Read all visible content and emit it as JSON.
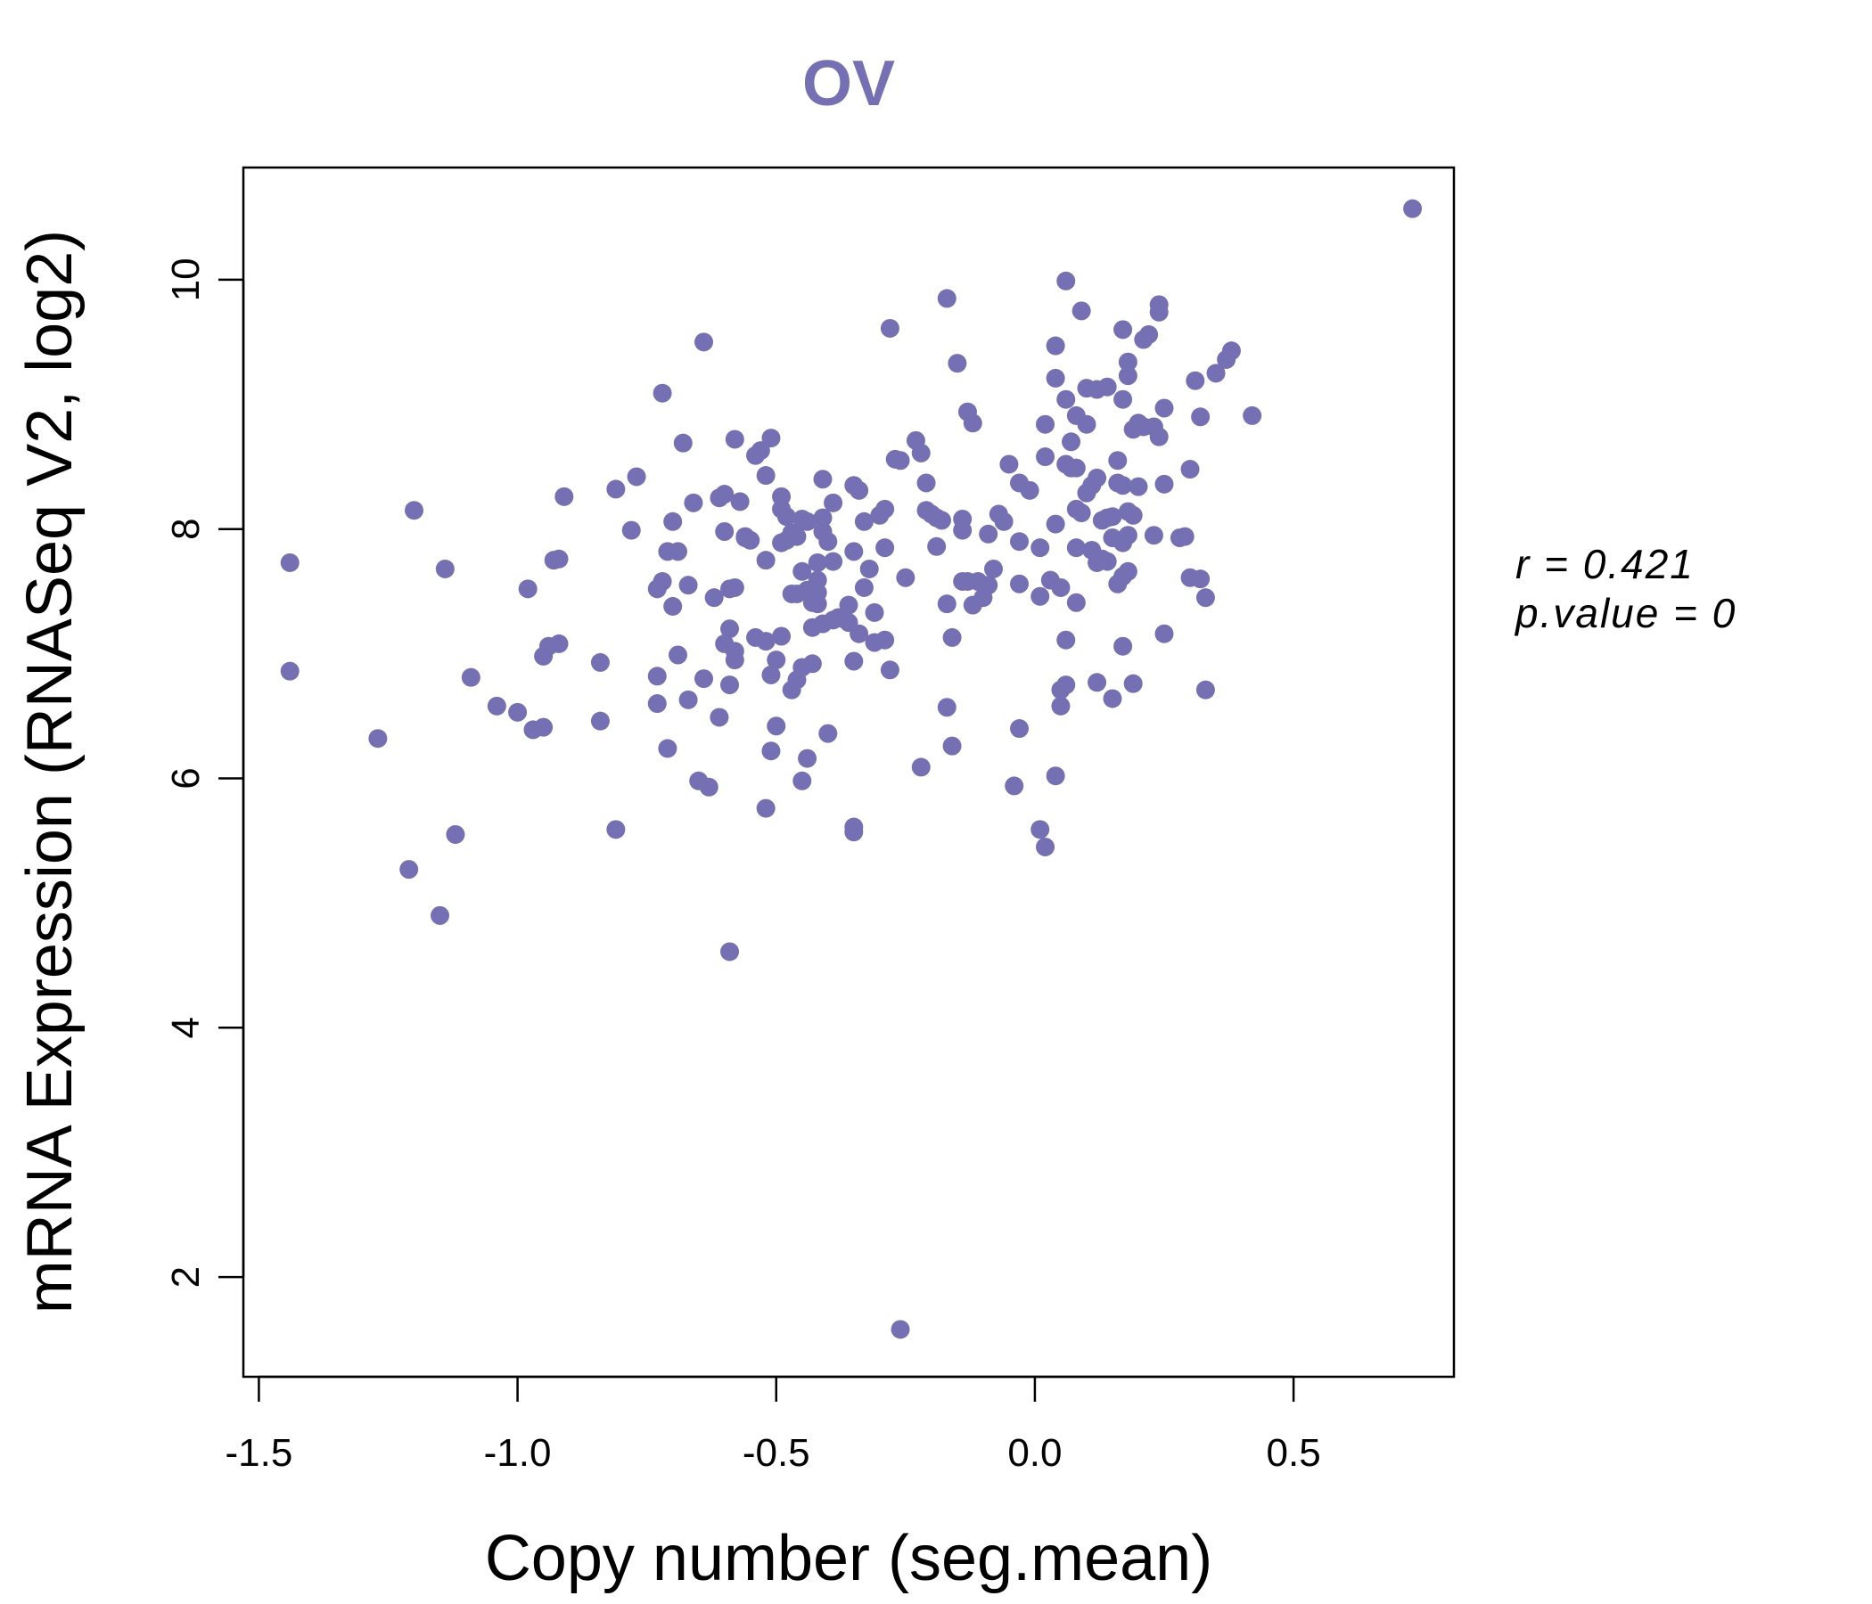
{
  "chart_data": {
    "type": "scatter",
    "title": "OV",
    "xlabel": "Copy number (seg.mean)",
    "ylabel": "mRNA Expression (RNASeq V2, log2)",
    "xlim": [
      -1.53,
      0.81
    ],
    "ylim": [
      1.2,
      10.9
    ],
    "x_ticks": [
      "-1.5",
      "-1.0",
      "-0.5",
      "0.0",
      "0.5"
    ],
    "y_ticks": [
      "2",
      "4",
      "6",
      "8",
      "10"
    ],
    "grid": false,
    "legend": "none",
    "point_color": "#7570b3",
    "annotations": {
      "r_label": "r = 0.421",
      "p_label": "p.value = 0"
    },
    "points": [
      [
        -1.44,
        7.73
      ],
      [
        -1.44,
        6.86
      ],
      [
        -1.27,
        6.32
      ],
      [
        -1.21,
        5.27
      ],
      [
        -1.2,
        8.15
      ],
      [
        -1.15,
        4.9
      ],
      [
        -1.14,
        7.68
      ],
      [
        -1.12,
        5.55
      ],
      [
        -1.09,
        6.81
      ],
      [
        -1.04,
        6.58
      ],
      [
        -1.0,
        6.53
      ],
      [
        -0.98,
        7.52
      ],
      [
        -0.97,
        6.39
      ],
      [
        -0.95,
        6.98
      ],
      [
        -0.95,
        6.41
      ],
      [
        -0.94,
        7.06
      ],
      [
        -0.93,
        7.75
      ],
      [
        -0.92,
        7.76
      ],
      [
        -0.92,
        7.08
      ],
      [
        -0.91,
        8.26
      ],
      [
        -0.84,
        6.93
      ],
      [
        -0.84,
        6.46
      ],
      [
        -0.81,
        8.32
      ],
      [
        -0.81,
        5.59
      ],
      [
        -0.78,
        7.99
      ],
      [
        -0.77,
        8.42
      ],
      [
        -0.73,
        7.52
      ],
      [
        -0.73,
        6.6
      ],
      [
        -0.73,
        6.82
      ],
      [
        -0.72,
        9.09
      ],
      [
        -0.72,
        7.58
      ],
      [
        -0.71,
        7.82
      ],
      [
        -0.71,
        6.24
      ],
      [
        -0.7,
        8.06
      ],
      [
        -0.7,
        7.38
      ],
      [
        -0.69,
        6.99
      ],
      [
        -0.69,
        7.82
      ],
      [
        -0.68,
        8.69
      ],
      [
        -0.67,
        7.55
      ],
      [
        -0.67,
        6.63
      ],
      [
        -0.66,
        8.21
      ],
      [
        -0.65,
        5.98
      ],
      [
        -0.64,
        9.5
      ],
      [
        -0.64,
        6.8
      ],
      [
        -0.63,
        5.93
      ],
      [
        -0.62,
        7.45
      ],
      [
        -0.61,
        8.25
      ],
      [
        -0.61,
        6.49
      ],
      [
        -0.6,
        8.28
      ],
      [
        -0.6,
        7.98
      ],
      [
        -0.6,
        7.08
      ],
      [
        -0.59,
        7.52
      ],
      [
        -0.59,
        7.2
      ],
      [
        -0.59,
        6.75
      ],
      [
        -0.59,
        4.61
      ],
      [
        -0.58,
        8.72
      ],
      [
        -0.58,
        7.53
      ],
      [
        -0.58,
        7.02
      ],
      [
        -0.58,
        6.95
      ],
      [
        -0.57,
        8.22
      ],
      [
        -0.56,
        7.94
      ],
      [
        -0.56,
        7.93
      ],
      [
        -0.55,
        7.91
      ],
      [
        -0.54,
        8.59
      ],
      [
        -0.54,
        7.13
      ],
      [
        -0.53,
        8.63
      ],
      [
        -0.52,
        8.43
      ],
      [
        -0.52,
        7.75
      ],
      [
        -0.52,
        7.1
      ],
      [
        -0.52,
        5.76
      ],
      [
        -0.51,
        8.73
      ],
      [
        -0.51,
        6.83
      ],
      [
        -0.51,
        6.22
      ],
      [
        -0.5,
        6.95
      ],
      [
        -0.5,
        6.42
      ],
      [
        -0.49,
        8.26
      ],
      [
        -0.49,
        8.16
      ],
      [
        -0.49,
        7.89
      ],
      [
        -0.49,
        7.14
      ],
      [
        -0.48,
        8.1
      ],
      [
        -0.48,
        7.91
      ],
      [
        -0.47,
        7.97
      ],
      [
        -0.47,
        7.48
      ],
      [
        -0.47,
        6.71
      ],
      [
        -0.46,
        7.94
      ],
      [
        -0.46,
        7.48
      ],
      [
        -0.46,
        6.79
      ],
      [
        -0.45,
        8.08
      ],
      [
        -0.45,
        7.66
      ],
      [
        -0.45,
        6.89
      ],
      [
        -0.45,
        5.98
      ],
      [
        -0.44,
        8.06
      ],
      [
        -0.44,
        7.51
      ],
      [
        -0.44,
        6.16
      ],
      [
        -0.43,
        7.41
      ],
      [
        -0.43,
        7.21
      ],
      [
        -0.43,
        6.92
      ],
      [
        -0.42,
        7.73
      ],
      [
        -0.42,
        7.59
      ],
      [
        -0.42,
        7.49
      ],
      [
        -0.42,
        7.4
      ],
      [
        -0.41,
        8.4
      ],
      [
        -0.41,
        8.09
      ],
      [
        -0.41,
        7.98
      ],
      [
        -0.41,
        7.24
      ],
      [
        -0.4,
        7.9
      ],
      [
        -0.4,
        6.36
      ],
      [
        -0.39,
        8.21
      ],
      [
        -0.39,
        7.74
      ],
      [
        -0.39,
        7.27
      ],
      [
        -0.38,
        7.29
      ],
      [
        -0.37,
        7.28
      ],
      [
        -0.36,
        7.25
      ],
      [
        -0.36,
        7.39
      ],
      [
        -0.35,
        8.35
      ],
      [
        -0.35,
        7.82
      ],
      [
        -0.35,
        6.94
      ],
      [
        -0.35,
        5.57
      ],
      [
        -0.35,
        5.61
      ],
      [
        -0.34,
        8.31
      ],
      [
        -0.34,
        7.16
      ],
      [
        -0.33,
        8.06
      ],
      [
        -0.33,
        7.53
      ],
      [
        -0.32,
        7.68
      ],
      [
        -0.31,
        7.33
      ],
      [
        -0.31,
        7.09
      ],
      [
        -0.3,
        8.11
      ],
      [
        -0.29,
        8.16
      ],
      [
        -0.29,
        7.85
      ],
      [
        -0.29,
        7.11
      ],
      [
        -0.28,
        9.61
      ],
      [
        -0.28,
        6.87
      ],
      [
        -0.27,
        8.56
      ],
      [
        -0.26,
        8.55
      ],
      [
        -0.26,
        1.58
      ],
      [
        -0.25,
        7.61
      ],
      [
        -0.23,
        8.71
      ],
      [
        -0.22,
        8.61
      ],
      [
        -0.22,
        6.09
      ],
      [
        -0.21,
        8.37
      ],
      [
        -0.21,
        8.15
      ],
      [
        -0.2,
        8.12
      ],
      [
        -0.19,
        7.86
      ],
      [
        -0.19,
        8.09
      ],
      [
        -0.18,
        8.07
      ],
      [
        -0.17,
        9.85
      ],
      [
        -0.17,
        7.4
      ],
      [
        -0.17,
        6.57
      ],
      [
        -0.16,
        7.13
      ],
      [
        -0.16,
        6.26
      ],
      [
        -0.15,
        9.33
      ],
      [
        -0.14,
        8.08
      ],
      [
        -0.14,
        7.99
      ],
      [
        -0.14,
        7.58
      ],
      [
        -0.13,
        8.94
      ],
      [
        -0.13,
        7.58
      ],
      [
        -0.12,
        8.85
      ],
      [
        -0.12,
        7.39
      ],
      [
        -0.11,
        7.58
      ],
      [
        -0.1,
        7.45
      ],
      [
        -0.09,
        7.96
      ],
      [
        -0.09,
        7.55
      ],
      [
        -0.08,
        7.68
      ],
      [
        -0.07,
        8.12
      ],
      [
        -0.06,
        8.06
      ],
      [
        -0.05,
        8.52
      ],
      [
        -0.04,
        5.94
      ],
      [
        -0.03,
        8.37
      ],
      [
        -0.03,
        7.9
      ],
      [
        -0.03,
        7.56
      ],
      [
        -0.03,
        6.4
      ],
      [
        -0.01,
        8.31
      ],
      [
        0.01,
        7.85
      ],
      [
        0.01,
        7.46
      ],
      [
        0.01,
        5.59
      ],
      [
        0.02,
        8.84
      ],
      [
        0.02,
        8.58
      ],
      [
        0.02,
        5.45
      ],
      [
        0.03,
        7.59
      ],
      [
        0.04,
        9.47
      ],
      [
        0.04,
        9.21
      ],
      [
        0.04,
        8.04
      ],
      [
        0.04,
        6.02
      ],
      [
        0.05,
        7.53
      ],
      [
        0.05,
        6.71
      ],
      [
        0.05,
        6.58
      ],
      [
        0.06,
        9.99
      ],
      [
        0.06,
        9.04
      ],
      [
        0.06,
        8.52
      ],
      [
        0.06,
        7.11
      ],
      [
        0.06,
        6.75
      ],
      [
        0.07,
        8.7
      ],
      [
        0.07,
        8.49
      ],
      [
        0.08,
        7.41
      ],
      [
        0.08,
        8.49
      ],
      [
        0.08,
        7.85
      ],
      [
        0.08,
        8.91
      ],
      [
        0.08,
        8.16
      ],
      [
        0.09,
        9.75
      ],
      [
        0.09,
        8.13
      ],
      [
        0.1,
        8.84
      ],
      [
        0.1,
        8.29
      ],
      [
        0.1,
        9.13
      ],
      [
        0.11,
        8.35
      ],
      [
        0.11,
        7.83
      ],
      [
        0.12,
        9.12
      ],
      [
        0.12,
        8.41
      ],
      [
        0.12,
        7.73
      ],
      [
        0.12,
        6.77
      ],
      [
        0.13,
        7.76
      ],
      [
        0.13,
        8.07
      ],
      [
        0.14,
        9.14
      ],
      [
        0.14,
        8.09
      ],
      [
        0.14,
        7.74
      ],
      [
        0.15,
        8.1
      ],
      [
        0.15,
        7.93
      ],
      [
        0.15,
        6.64
      ],
      [
        0.16,
        8.55
      ],
      [
        0.16,
        8.37
      ],
      [
        0.16,
        7.56
      ],
      [
        0.17,
        9.6
      ],
      [
        0.17,
        9.04
      ],
      [
        0.17,
        8.35
      ],
      [
        0.17,
        7.89
      ],
      [
        0.17,
        7.62
      ],
      [
        0.17,
        7.06
      ],
      [
        0.18,
        9.34
      ],
      [
        0.18,
        9.23
      ],
      [
        0.18,
        8.14
      ],
      [
        0.18,
        7.95
      ],
      [
        0.18,
        7.66
      ],
      [
        0.19,
        8.8
      ],
      [
        0.19,
        8.11
      ],
      [
        0.19,
        6.76
      ],
      [
        0.2,
        8.85
      ],
      [
        0.2,
        8.34
      ],
      [
        0.21,
        9.52
      ],
      [
        0.21,
        8.82
      ],
      [
        0.22,
        9.56
      ],
      [
        0.23,
        8.82
      ],
      [
        0.23,
        7.95
      ],
      [
        0.24,
        9.74
      ],
      [
        0.24,
        8.74
      ],
      [
        0.24,
        9.8
      ],
      [
        0.25,
        8.97
      ],
      [
        0.25,
        8.36
      ],
      [
        0.25,
        7.16
      ],
      [
        0.28,
        7.93
      ],
      [
        0.29,
        7.94
      ],
      [
        0.3,
        8.48
      ],
      [
        0.3,
        7.61
      ],
      [
        0.31,
        9.19
      ],
      [
        0.32,
        8.9
      ],
      [
        0.32,
        7.6
      ],
      [
        0.33,
        7.45
      ],
      [
        0.33,
        6.71
      ],
      [
        0.35,
        9.25
      ],
      [
        0.37,
        9.36
      ],
      [
        0.38,
        9.43
      ],
      [
        0.42,
        8.91
      ],
      [
        0.73,
        10.57
      ]
    ]
  }
}
